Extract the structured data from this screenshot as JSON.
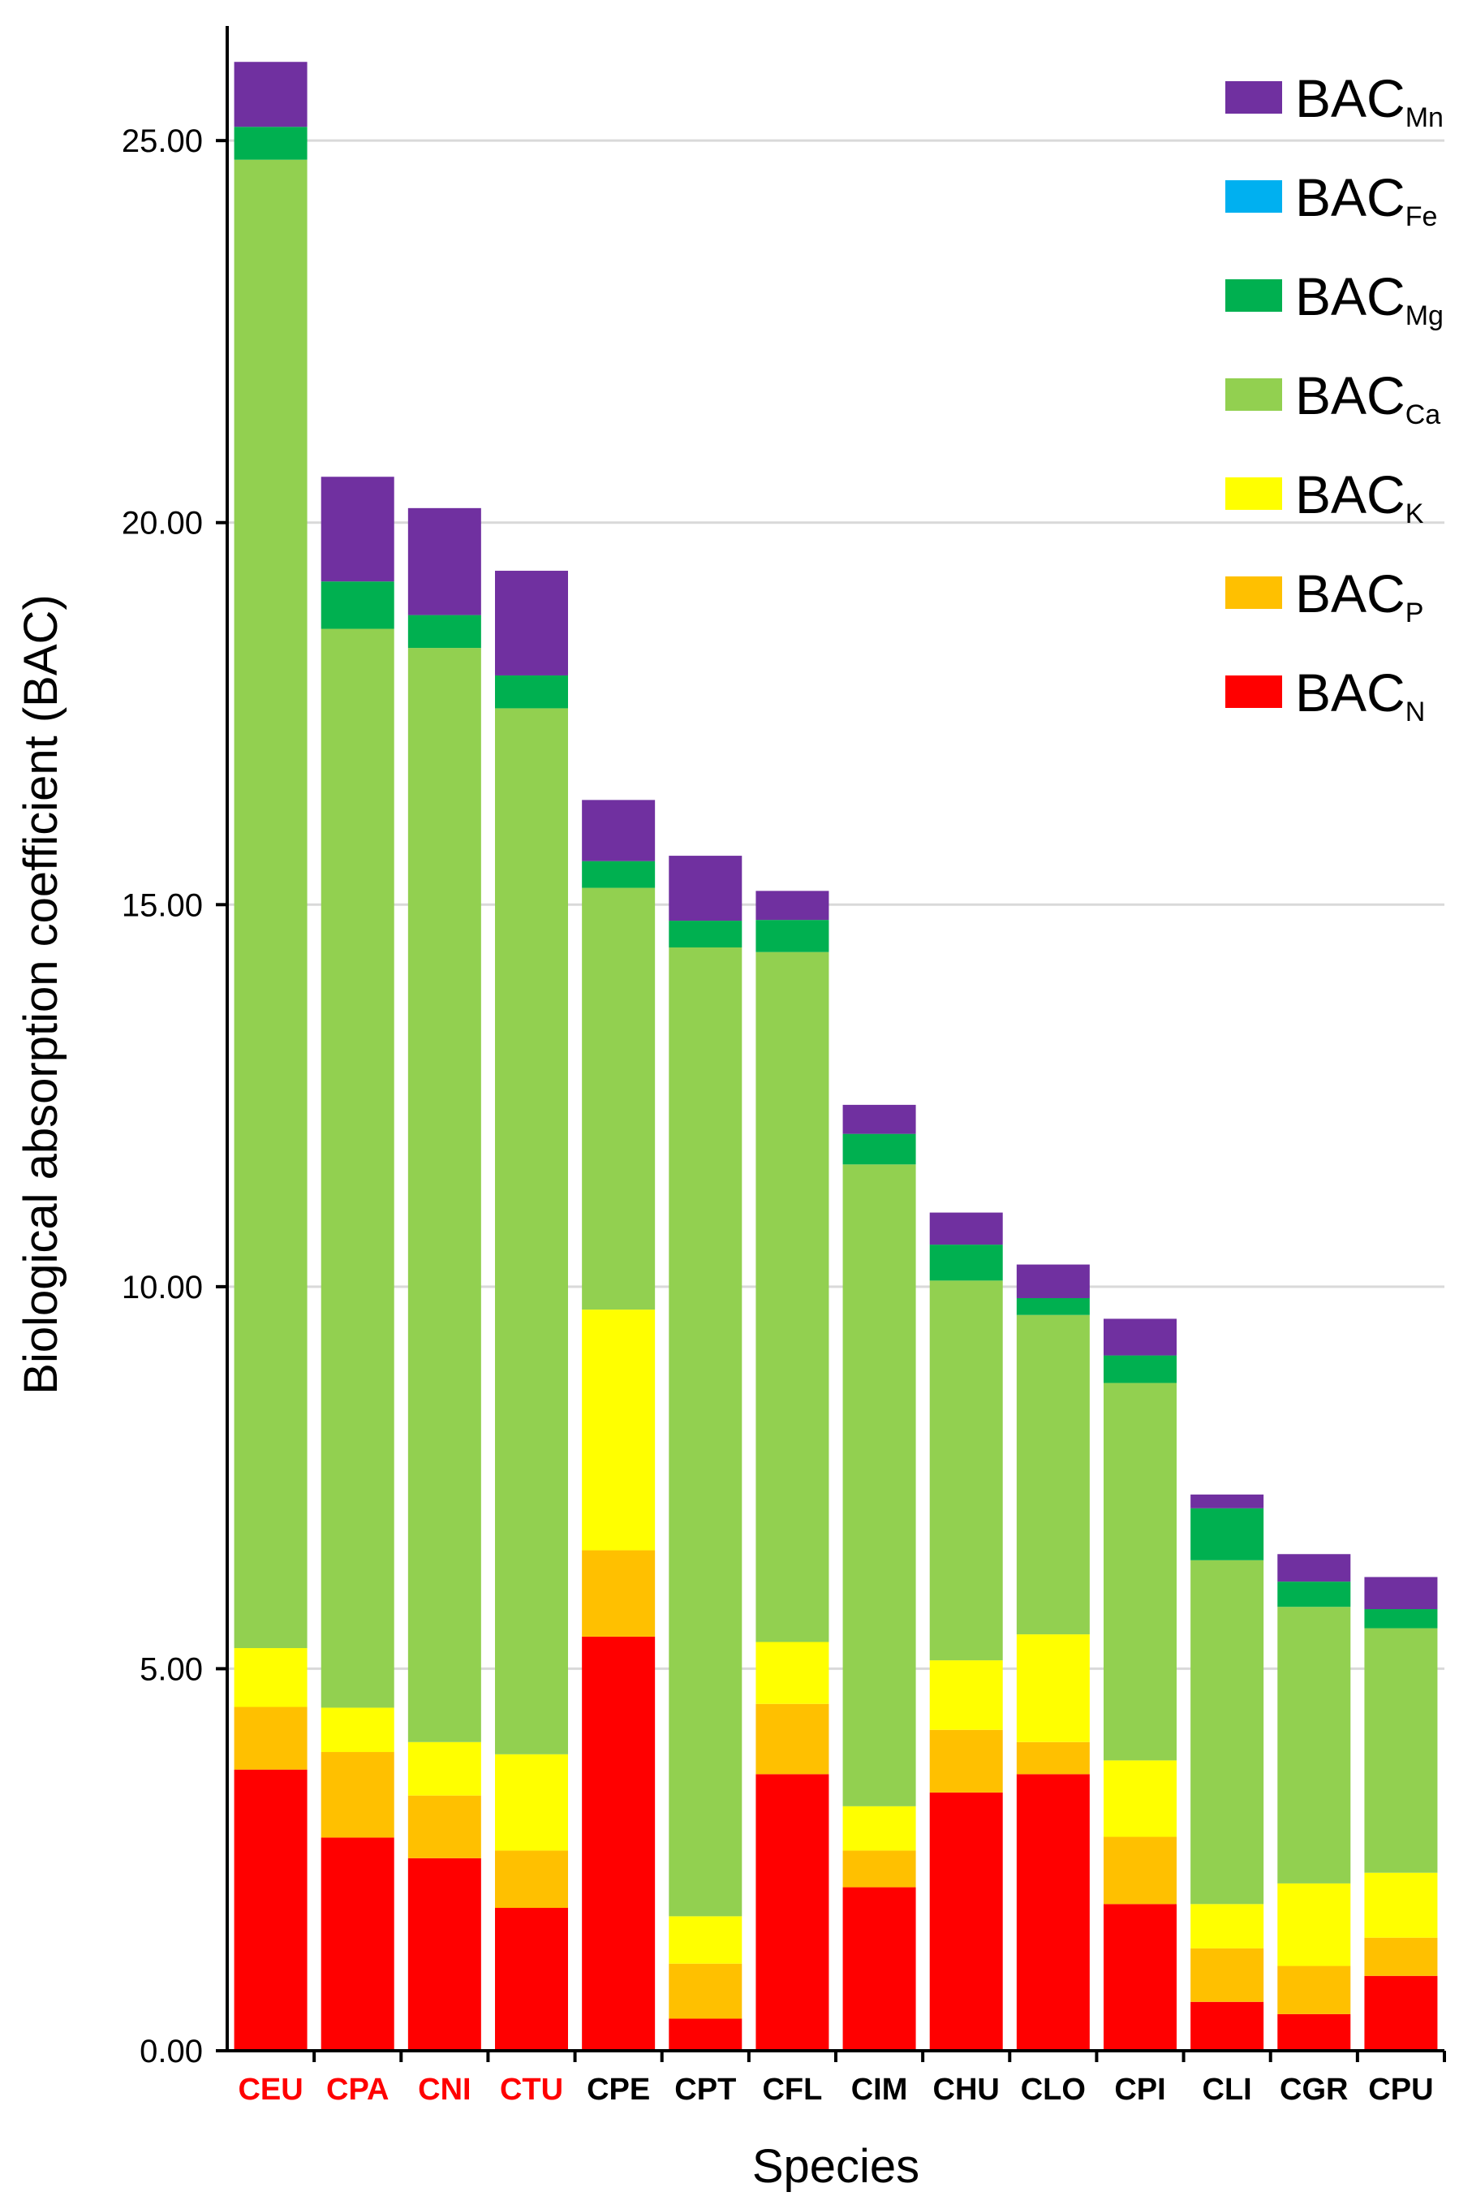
{
  "chart_data": {
    "type": "bar",
    "stacked": true,
    "title": "",
    "xlabel": "Species",
    "ylabel": "Biological absorption coefficient (BAC)",
    "ylim": [
      0,
      26.5
    ],
    "yticks": [
      0,
      5,
      10,
      15,
      20,
      25
    ],
    "ytick_labels": [
      "0.00",
      "5.00",
      "10.00",
      "15.00",
      "20.00",
      "25.00"
    ],
    "grid": true,
    "legend_position": "top-right",
    "categories": [
      "CEU",
      "CPA",
      "CNI",
      "CTU",
      "CPE",
      "CPT",
      "CFL",
      "CIM",
      "CHU",
      "CLO",
      "CPI",
      "CLI",
      "CGR",
      "CPU"
    ],
    "category_colors": [
      "#ff0000",
      "#ff0000",
      "#ff0000",
      "#ff0000",
      "#000000",
      "#000000",
      "#000000",
      "#000000",
      "#000000",
      "#000000",
      "#000000",
      "#000000",
      "#000000",
      "#000000"
    ],
    "series": [
      {
        "key": "N",
        "name_main": "BAC",
        "name_sub": "N",
        "color": "#ff0000",
        "values": [
          3.68,
          2.79,
          2.52,
          1.87,
          5.42,
          0.42,
          3.62,
          2.14,
          3.38,
          3.62,
          1.92,
          0.64,
          0.48,
          0.98
        ]
      },
      {
        "key": "P",
        "name_main": "BAC",
        "name_sub": "P",
        "color": "#ffc000",
        "values": [
          0.82,
          1.12,
          0.82,
          0.75,
          1.13,
          0.72,
          0.92,
          0.48,
          0.82,
          0.42,
          0.88,
          0.7,
          0.63,
          0.5
        ]
      },
      {
        "key": "K",
        "name_main": "BAC",
        "name_sub": "K",
        "color": "#ffff00",
        "values": [
          0.77,
          0.58,
          0.7,
          1.26,
          3.15,
          0.62,
          0.81,
          0.58,
          0.91,
          1.41,
          1.0,
          0.58,
          1.08,
          0.85
        ]
      },
      {
        "key": "Ca",
        "name_main": "BAC",
        "name_sub": "Ca",
        "color": "#92d050",
        "values": [
          19.48,
          14.12,
          14.32,
          13.69,
          5.52,
          12.68,
          9.03,
          8.4,
          4.97,
          4.18,
          4.94,
          4.5,
          3.62,
          3.2
        ]
      },
      {
        "key": "Mg",
        "name_main": "BAC",
        "name_sub": "Mg",
        "color": "#00b050",
        "values": [
          0.43,
          0.62,
          0.43,
          0.43,
          0.35,
          0.35,
          0.42,
          0.4,
          0.47,
          0.22,
          0.36,
          0.68,
          0.33,
          0.25
        ]
      },
      {
        "key": "Fe",
        "name_main": "BAC",
        "name_sub": "Fe",
        "color": "#00b0f0",
        "values": [
          0,
          0,
          0,
          0,
          0,
          0,
          0,
          0,
          0,
          0,
          0,
          0,
          0,
          0
        ]
      },
      {
        "key": "Mn",
        "name_main": "BAC",
        "name_sub": "Mn",
        "color": "#7030a0",
        "values": [
          0.85,
          1.37,
          1.4,
          1.37,
          0.8,
          0.85,
          0.38,
          0.38,
          0.42,
          0.44,
          0.48,
          0.18,
          0.36,
          0.42
        ]
      }
    ],
    "legend_order": [
      "Mn",
      "Fe",
      "Mg",
      "Ca",
      "K",
      "P",
      "N"
    ]
  }
}
